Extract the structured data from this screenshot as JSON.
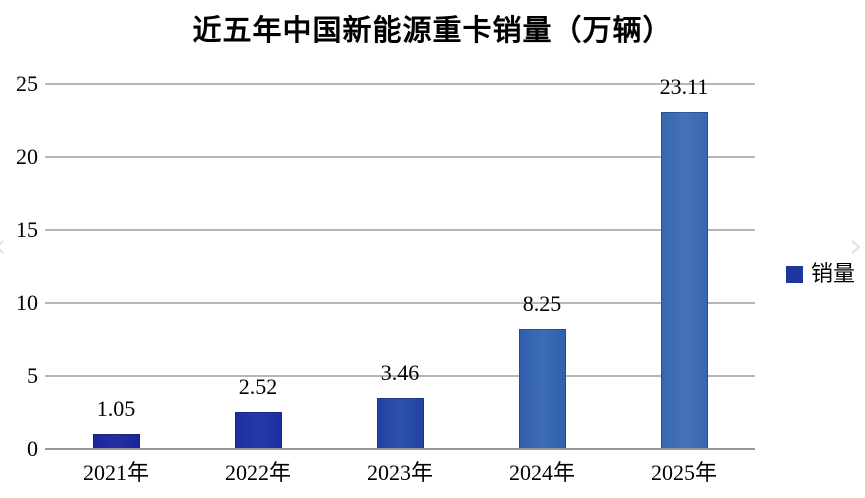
{
  "title": "近五年中国新能源重卡销量（万辆）",
  "legend": {
    "label": "销量",
    "swatch_color": "#1f35a0"
  },
  "colors": {
    "background": "#ffffff",
    "gridline": "#b6b6b6",
    "axis_line": "#999999",
    "text": "#000000"
  },
  "artifacts": {
    "prev_glyph": "‹",
    "next_glyph": "›"
  },
  "chart_data": {
    "type": "bar",
    "title": "近五年中国新能源重卡销量（万辆）",
    "categories": [
      "2021年",
      "2022年",
      "2023年",
      "2024年",
      "2025年"
    ],
    "series": [
      {
        "name": "销量",
        "values": [
          1.05,
          2.52,
          3.46,
          8.25,
          23.11
        ]
      }
    ],
    "value_labels": [
      "1.05",
      "2.52",
      "3.46",
      "8.25",
      "23.11"
    ],
    "xlabel": "",
    "ylabel": "",
    "ylim": [
      0,
      25
    ],
    "yticks": [
      0,
      5,
      10,
      15,
      20,
      25
    ],
    "grid": true,
    "legend_position": "center-right",
    "bar_colors": [
      "#1a2599",
      "#1c2fa0",
      "#2142a4",
      "#2f5fae",
      "#3766b0"
    ],
    "bar_colors_light": [
      "#232fa1",
      "#253aa6",
      "#2d50ac",
      "#3d6bb5",
      "#4572b8"
    ]
  }
}
